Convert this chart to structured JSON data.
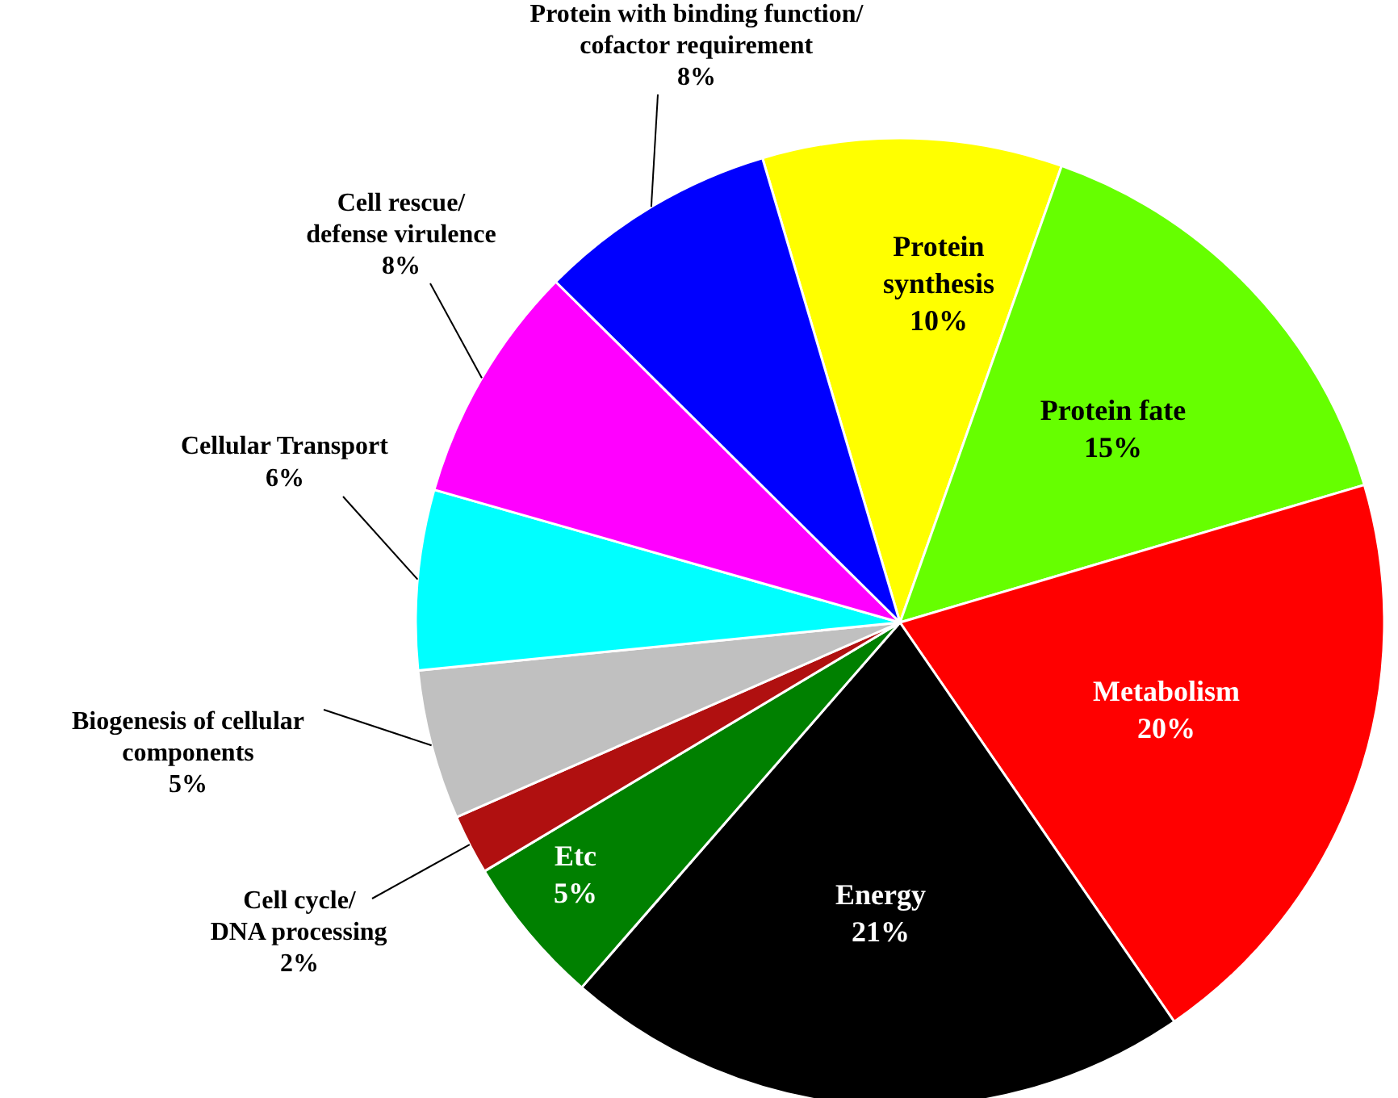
{
  "chart_data": {
    "type": "pie",
    "categories": [
      "Protein\nsynthesis",
      "Protein fate",
      "Metabolism",
      "Energy",
      "Etc",
      "Cell cycle/\nDNA processing",
      "Biogenesis of cellular\ncomponents",
      "Cellular Transport",
      "Cell rescue/\ndefense virulence",
      "Protein with binding function/\ncofactor requirement"
    ],
    "values": [
      10,
      15,
      20,
      21,
      5,
      2,
      5,
      6,
      8,
      8
    ],
    "value_labels": [
      "10%",
      "15%",
      "20%",
      "21%",
      "5%",
      "2%",
      "5%",
      "6%",
      "8%",
      "8%"
    ],
    "colors": [
      "#ffff00",
      "#66ff00",
      "#ff0000",
      "#000000",
      "#008000",
      "#b01010",
      "#c0c0c0",
      "#00ffff",
      "#ff00ff",
      "#0000ff"
    ]
  }
}
